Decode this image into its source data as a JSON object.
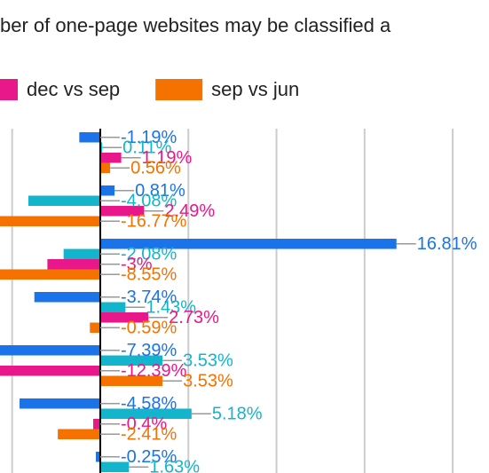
{
  "chart_data": {
    "type": "bar",
    "orientation": "horizontal",
    "title": "ber of one-page websites may be classified a",
    "categories": [
      null,
      null,
      null,
      null,
      null,
      null,
      null
    ],
    "series": [
      {
        "color": "#1a73e8",
        "values": [
          -1.19,
          0.81,
          16.81,
          -3.74,
          -7.39,
          -4.58,
          -0.25
        ],
        "value_labels": [
          "-1.19%",
          "0.81%",
          "16.81%",
          "-3.74%",
          "-7.39%",
          "-4.58%",
          "-0.25%"
        ]
      },
      {
        "color": "#12b5cb",
        "values": [
          0.11,
          -4.08,
          -2.08,
          1.43,
          3.53,
          5.18,
          1.63
        ],
        "value_labels": [
          "0.11%",
          "-4.08%",
          "-2.08%",
          "1.43%",
          "3.53%",
          "5.18%",
          "1.63%"
        ]
      },
      {
        "name": "dec vs sep",
        "color": "#e8178a",
        "values": [
          1.19,
          2.49,
          -3,
          2.73,
          -12.39,
          -0.4,
          null
        ],
        "value_labels": [
          "1.19%",
          "2.49%",
          "-3%",
          "2.73%",
          "-12.39%",
          "-0.4%",
          null
        ]
      },
      {
        "name": "sep vs jun",
        "color": "#f57200",
        "values": [
          0.56,
          -16.77,
          -8.55,
          -0.59,
          3.53,
          -2.41,
          null
        ],
        "value_labels": [
          "0.56%",
          "-16.77%",
          "-8.55%",
          "-0.59%",
          "3.53%",
          "-2.41%",
          null
        ]
      }
    ],
    "xlim": [
      -5.69,
      22.06
    ],
    "xticks": [
      -5,
      0,
      5,
      10,
      15,
      20
    ],
    "grid": true
  }
}
